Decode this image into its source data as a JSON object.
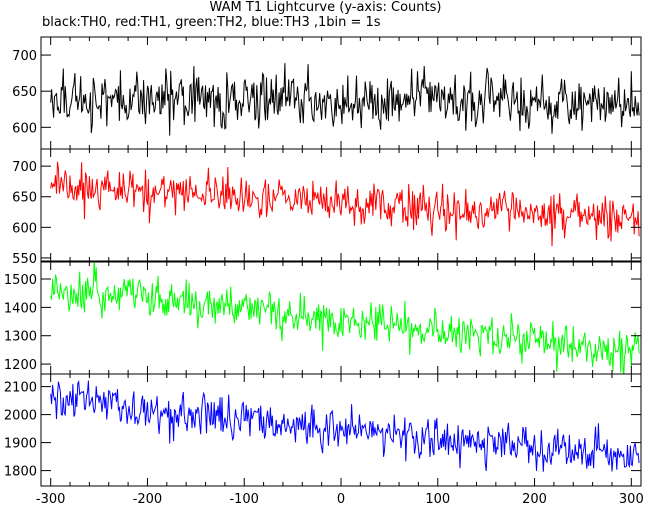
{
  "title": "WAM T1 Lightcurve (y-axis: Counts)",
  "subtitle": "black:TH0, red:TH1, green:TH2, blue:TH3 ,1bin = 1s",
  "chart_data": {
    "type": "line",
    "x_range": [
      -310,
      310
    ],
    "x_ticks": [
      -300,
      -200,
      -100,
      0,
      100,
      200,
      300
    ],
    "panels": [
      {
        "name": "TH0",
        "color": "#000000",
        "ylim": [
          570,
          725
        ],
        "y_ticks": [
          600,
          650,
          700
        ],
        "series": {
          "start": [
            -300,
            640
          ],
          "end": [
            308,
            635
          ],
          "noise": 28
        }
      },
      {
        "name": "TH1",
        "color": "#ff0000",
        "ylim": [
          545,
          728
        ],
        "y_ticks": [
          550,
          600,
          650,
          700
        ],
        "series": {
          "start": [
            -300,
            670
          ],
          "end": [
            308,
            610
          ],
          "noise": 25
        }
      },
      {
        "name": "TH2",
        "color": "#00ff00",
        "ylim": [
          1165,
          1560
        ],
        "y_ticks": [
          1200,
          1300,
          1400,
          1500
        ],
        "series": {
          "start": [
            -300,
            1470
          ],
          "end": [
            308,
            1235
          ],
          "noise": 55
        }
      },
      {
        "name": "TH3",
        "color": "#0000ff",
        "ylim": [
          1745,
          2145
        ],
        "y_ticks": [
          1800,
          1900,
          2000,
          2100
        ],
        "series": {
          "start": [
            -300,
            2050
          ],
          "end": [
            308,
            1840
          ],
          "noise": 55
        }
      }
    ]
  }
}
